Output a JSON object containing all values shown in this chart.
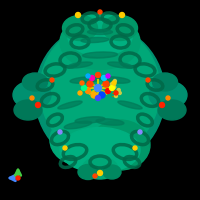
{
  "background_color": "#000000",
  "protein_color": "#00a878",
  "protein_color2": "#008f66",
  "protein_color3": "#00b890",
  "ligand_colors": [
    "#ffff00",
    "#ff4400",
    "#0044ff",
    "#ff8800",
    "#00ffaa",
    "#cc00ff"
  ],
  "axis_arrow_colors": {
    "x": "#4488ff",
    "y": "#44cc44",
    "origin": "#ff2200"
  },
  "small_dots_colors": [
    "#ff0000",
    "#ffff00",
    "#0000ff",
    "#ff8800"
  ],
  "figsize": [
    2.0,
    2.0
  ],
  "dpi": 100
}
